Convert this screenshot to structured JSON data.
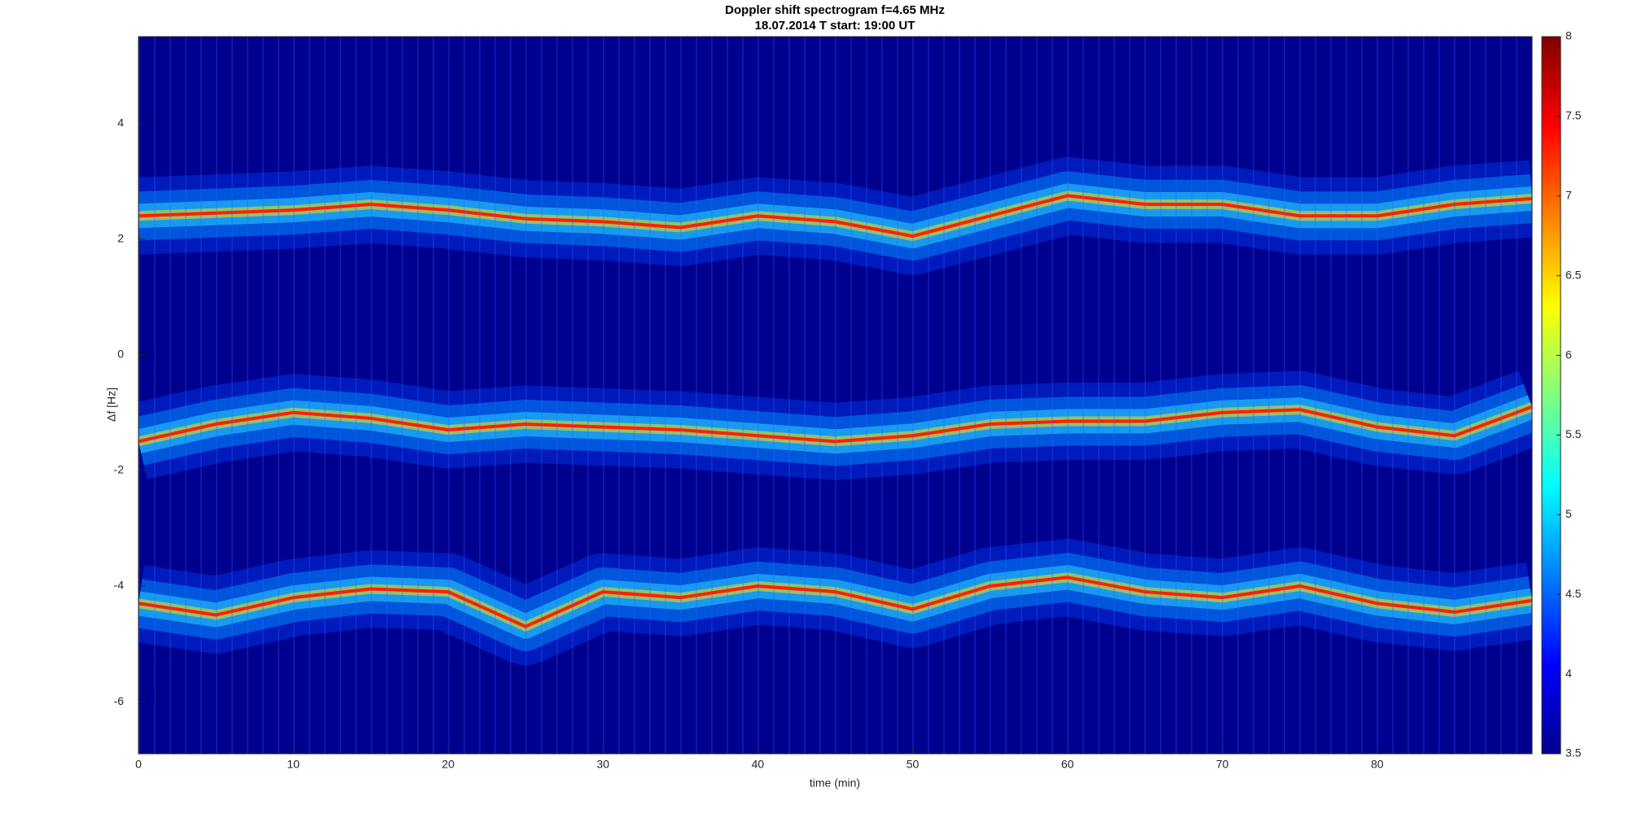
{
  "chart_data": {
    "type": "spectrogram",
    "title": "Doppler shift spectrogram f=4.65 MHz",
    "subtitle": "18.07.2014   T start: 19:00 UT",
    "x_label": "time (min)",
    "y_label": "Δf [Hz]",
    "xlim": [
      0,
      90
    ],
    "xticks": [
      0,
      10,
      20,
      30,
      40,
      50,
      60,
      70,
      80
    ],
    "ylim": [
      -6.9,
      5.5
    ],
    "yticks": [
      -6,
      -4,
      -2,
      0,
      2,
      4
    ],
    "clim": [
      3.5,
      8
    ],
    "cticks": [
      3.5,
      4,
      4.5,
      5,
      5.5,
      6,
      6.5,
      7,
      7.5,
      8
    ],
    "colormap": [
      "#00008f",
      "#0000ff",
      "#0080ff",
      "#00ffff",
      "#80ff80",
      "#ffff00",
      "#ff8000",
      "#ff0000",
      "#800000"
    ],
    "x": [
      0,
      5,
      10,
      15,
      20,
      25,
      30,
      35,
      40,
      45,
      50,
      55,
      60,
      65,
      70,
      75,
      80,
      85,
      90
    ],
    "series": [
      {
        "color": "#ff2000",
        "values": [
          2.4,
          2.45,
          2.5,
          2.6,
          2.5,
          2.35,
          2.3,
          2.2,
          2.4,
          2.3,
          2.05,
          2.4,
          2.75,
          2.6,
          2.6,
          2.4,
          2.4,
          2.6,
          2.7
        ]
      },
      {
        "color": "#ff2000",
        "values": [
          -1.5,
          -1.2,
          -1.0,
          -1.1,
          -1.3,
          -1.2,
          -1.25,
          -1.3,
          -1.4,
          -1.5,
          -1.4,
          -1.2,
          -1.15,
          -1.15,
          -1.0,
          -0.95,
          -1.25,
          -1.4,
          -0.9
        ]
      },
      {
        "color": "#ff2000",
        "values": [
          -4.3,
          -4.5,
          -4.2,
          -4.05,
          -4.1,
          -4.7,
          -4.1,
          -4.2,
          -4.0,
          -4.1,
          -4.4,
          -4.0,
          -3.85,
          -4.1,
          -4.2,
          -4.0,
          -4.3,
          -4.45,
          -4.25
        ]
      }
    ]
  }
}
